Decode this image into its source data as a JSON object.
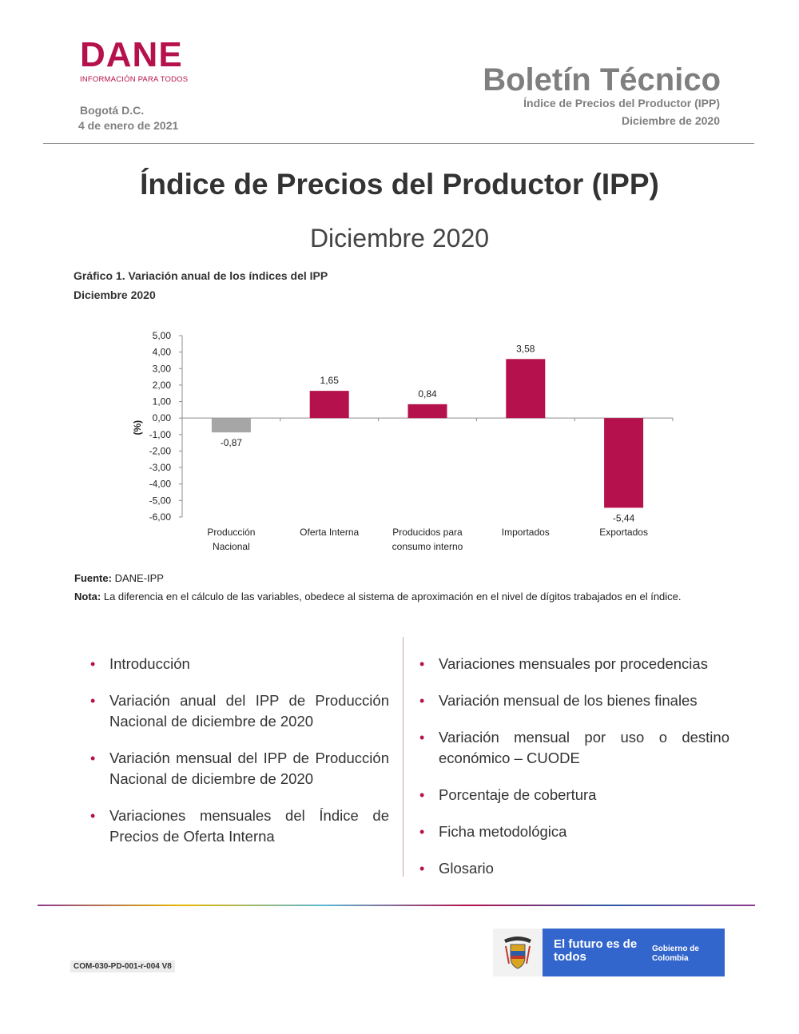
{
  "header": {
    "logo_word": "DANE",
    "logo_tagline": "INFORMACIÓN PARA TODOS",
    "city": "Bogotá D.C.",
    "date": "4 de enero de 2021",
    "bulletin_title": "Boletín Técnico",
    "bulletin_subtitle": "Índice de Precios del Productor (IPP)",
    "bulletin_period": "Diciembre de 2020"
  },
  "title": "Índice de Precios del Productor (IPP)",
  "subtitle": "Diciembre 2020",
  "figure": {
    "title": "Gráfico 1. Variación anual de los índices del IPP",
    "period": "Diciembre 2020"
  },
  "chart_data": {
    "type": "bar",
    "ylabel": "(%)",
    "ylim": [
      -6,
      5
    ],
    "yticks": [
      "5,00",
      "4,00",
      "3,00",
      "2,00",
      "1,00",
      "0,00",
      "-1,00",
      "-2,00",
      "-3,00",
      "-4,00",
      "-5,00",
      "-6,00"
    ],
    "categories": [
      [
        "Producción",
        "Nacional"
      ],
      [
        "Oferta Interna"
      ],
      [
        "Producidos para",
        "consumo interno"
      ],
      [
        "Importados"
      ],
      [
        "Exportados"
      ]
    ],
    "values": [
      -0.87,
      1.65,
      0.84,
      3.58,
      -5.44
    ],
    "value_labels": [
      "-0,87",
      "1,65",
      "0,84",
      "3,58",
      "-5,44"
    ],
    "colors": [
      "#a6a6a6",
      "#b5114d",
      "#b5114d",
      "#b5114d",
      "#b5114d"
    ],
    "grid": false,
    "legend": "none"
  },
  "source_label": "Fuente:",
  "source_value": "DANE-IPP",
  "note_label": "Nota:",
  "note_value": "La diferencia en el cálculo de las variables, obedece al sistema de aproximación en el nivel de dígitos trabajados en el índice.",
  "contents_left": [
    "Introducción",
    "Variación anual del IPP de Producción Nacional de diciembre de 2020",
    "Variación mensual del IPP de Producción Nacional de diciembre de 2020",
    "Variaciones mensuales del Índice de Precios de Oferta Interna"
  ],
  "contents_right": [
    "Variaciones mensuales por procedencias",
    "Variación mensual de los bienes finales",
    "Variación mensual por uso o destino económico – CUODE",
    "Porcentaje de cobertura",
    "Ficha metodológica",
    "Glosario"
  ],
  "footer": {
    "form_code": "COM-030-PD-001-r-004 V8",
    "gov_slogan": "El futuro es de todos",
    "gov_name": "Gobierno de Colombia",
    "rule_colors": [
      "#8e3a8e",
      "#e6b800",
      "#5bb8d6",
      "#b5114d",
      "#2e5aa8",
      "#8e3a8e"
    ],
    "accent_blue": "#3366cc"
  }
}
